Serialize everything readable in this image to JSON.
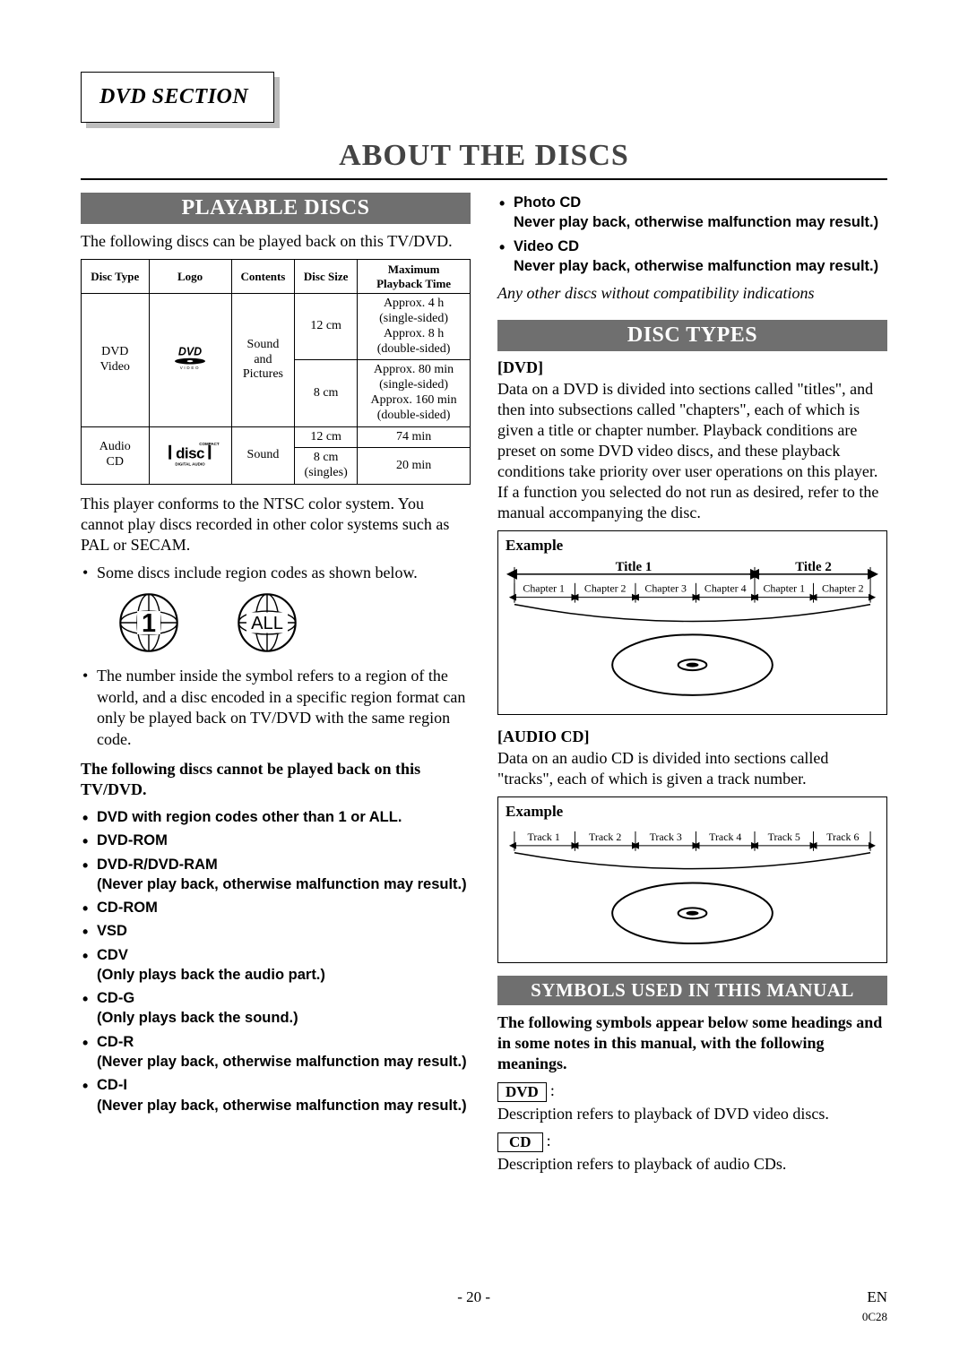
{
  "section_tab": "DVD SECTION",
  "main_title": "ABOUT THE DISCS",
  "playable": {
    "heading": "PLAYABLE DISCS",
    "intro": "The following discs can be played back on this TV/DVD.",
    "table": {
      "headers": [
        "Disc Type",
        "Logo",
        "Contents",
        "Disc Size",
        "Maximum\nPlayback Time"
      ],
      "rows": [
        {
          "type": "DVD\nVideo",
          "logo": "dvd",
          "contents": "Sound\nand\nPictures",
          "sizes": [
            {
              "size": "12 cm",
              "time": "Approx. 4 h\n(single-sided)\nApprox. 8 h\n(double-sided)"
            },
            {
              "size": "8 cm",
              "time": "Approx. 80 min\n(single-sided)\nApprox. 160 min\n(double-sided)"
            }
          ]
        },
        {
          "type": "Audio\nCD",
          "logo": "cd",
          "contents": "Sound",
          "sizes": [
            {
              "size": "12 cm",
              "time": "74 min"
            },
            {
              "size": "8 cm\n(singles)",
              "time": "20 min"
            }
          ]
        }
      ]
    },
    "ntsc_note": "This player conforms to the NTSC color system. You cannot play discs recorded in other color systems such as PAL or SECAM.",
    "region_bullet": "Some discs include region codes as shown below.",
    "globes": [
      "1",
      "ALL"
    ],
    "region_note": "The number inside the symbol refers to a region of the world, and a disc encoded in a specific region format can only be played back on TV/DVD with the same region code.",
    "cannot_heading": "The following discs cannot be played back on this TV/DVD.",
    "cannot_list": [
      {
        "label": "DVD with region codes other than 1 or ALL."
      },
      {
        "label": "DVD-ROM"
      },
      {
        "label": "DVD-R/DVD-RAM",
        "note": "(Never play back, otherwise malfunction may result.)"
      },
      {
        "label": "CD-ROM"
      },
      {
        "label": "VSD"
      },
      {
        "label": "CDV",
        "note": "(Only plays back the audio part.)"
      },
      {
        "label": "CD-G",
        "note": "(Only plays back the sound.)"
      },
      {
        "label": "CD-R",
        "note": "(Never play back, otherwise malfunction may result.)"
      },
      {
        "label": "CD-I",
        "note": "(Never play back, otherwise malfunction may result.)"
      }
    ]
  },
  "right_extra_bullets": [
    {
      "label": "Photo CD",
      "note": "Never play back, otherwise malfunction may result.)"
    },
    {
      "label": "Video CD",
      "note": "Never play back, otherwise malfunction may result.)"
    }
  ],
  "right_italic": "Any other discs without compatibility indications",
  "disc_types": {
    "heading": "DISC TYPES",
    "dvd_label": "[DVD]",
    "dvd_text": "Data on a DVD is divided into sections called \"titles\", and then into subsections called \"chapters\", each of which is given a title or chapter number. Playback conditions are preset on some DVD video discs, and these playback conditions take priority over user operations on this player. If a function you selected do not run as desired, refer to the manual accompanying the disc.",
    "example_label": "Example",
    "dvd_example": {
      "titles": [
        "Title 1",
        "Title 2"
      ],
      "chapters_t1": [
        "Chapter 1",
        "Chapter 2",
        "Chapter 3",
        "Chapter 4"
      ],
      "chapters_t2": [
        "Chapter 1",
        "Chapter 2"
      ]
    },
    "cd_label": "[AUDIO CD]",
    "cd_text": "Data on an audio CD is divided into sections called \"tracks\", each of which is given a track number.",
    "cd_example": {
      "tracks": [
        "Track 1",
        "Track 2",
        "Track 3",
        "Track 4",
        "Track 5",
        "Track 6"
      ]
    }
  },
  "symbols": {
    "heading": "SYMBOLS USED IN THIS MANUAL",
    "intro": "The following symbols appear below some headings and in some notes in this manual, with the following meanings.",
    "dvd_badge": "DVD",
    "dvd_desc": "Description refers to playback of DVD video discs.",
    "cd_badge": "CD",
    "cd_desc": "Description refers to playback of audio CDs."
  },
  "footer": {
    "page": "- 20 -",
    "lang": "EN",
    "code": "0C28"
  },
  "colors": {
    "heading_bg": "#6f6f6f",
    "heading_fg": "#ffffff",
    "title_fg": "#444444",
    "shadow": "#bdbdbd",
    "text": "#000000"
  }
}
